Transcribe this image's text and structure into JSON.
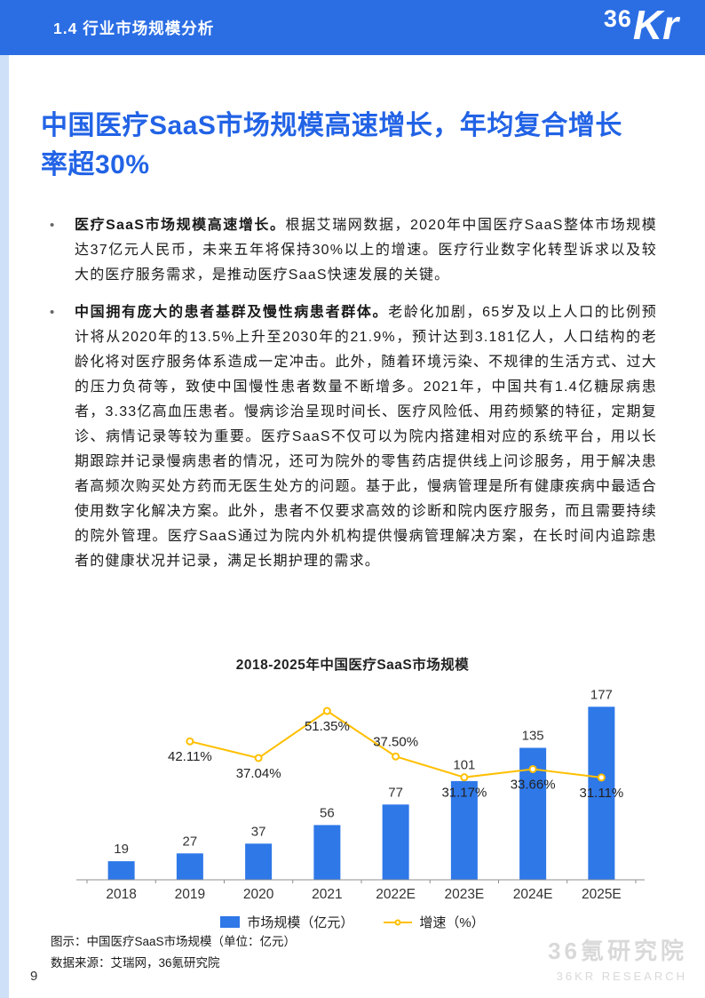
{
  "header": {
    "section": "1.4 行业市场规模分析",
    "logo_36": "36",
    "logo_kr": "Kr"
  },
  "title": {
    "text": "中国医疗SaaS市场规模高速增长，年均复合增长率超30%"
  },
  "bullets": [
    {
      "lead": "医疗SaaS市场规模高速增长。",
      "body": "根据艾瑞网数据，2020年中国医疗SaaS整体市场规模达37亿元人民币，未来五年将保持30%以上的增速。医疗行业数字化转型诉求以及较大的医疗服务需求，是推动医疗SaaS快速发展的关键。"
    },
    {
      "lead": "中国拥有庞大的患者基群及慢性病患者群体。",
      "body": "老龄化加剧，65岁及以上人口的比例预计将从2020年的13.5%上升至2030年的21.9%，预计达到3.181亿人，人口结构的老龄化将对医疗服务体系造成一定冲击。此外，随着环境污染、不规律的生活方式、过大的压力负荷等，致使中国慢性患者数量不断增多。2021年，中国共有1.4亿糖尿病患者，3.33亿高血压患者。慢病诊治呈现时间长、医疗风险低、用药频繁的特征，定期复诊、病情记录等较为重要。医疗SaaS不仅可以为院内搭建相对应的系统平台，用以长期跟踪并记录慢病患者的情况，还可为院外的零售药店提供线上问诊服务，用于解决患者高频次购买处方药而无医生处方的问题。基于此，慢病管理是所有健康疾病中最适合使用数字化解决方案。此外，患者不仅要求高效的诊断和院内医疗服务，而且需要持续的院外管理。医疗SaaS通过为院内外机构提供慢病管理解决方案，在长时间内追踪患者的健康状况并记录，满足长期护理的需求。"
    }
  ],
  "chart_data": {
    "type": "bar",
    "title": "2018-2025年中国医疗SaaS市场规模",
    "categories": [
      "2018",
      "2019",
      "2020",
      "2021",
      "2022E",
      "2023E",
      "2024E",
      "2025E"
    ],
    "series": [
      {
        "name": "市场规模（亿元）",
        "type": "bar",
        "values": [
          19,
          27,
          37,
          56,
          77,
          101,
          135,
          177
        ],
        "color": "#2E78E8"
      },
      {
        "name": "增速（%）",
        "type": "line",
        "x_start_index": 1,
        "values": [
          42.11,
          37.04,
          51.35,
          37.5,
          31.17,
          33.66,
          31.11
        ],
        "labels": [
          "42.11%",
          "37.04%",
          "51.35%",
          "37.50%",
          "31.17%",
          "33.66%",
          "31.11%"
        ],
        "label_positions": [
          "below",
          "below",
          "below",
          "above",
          "below",
          "below",
          "below"
        ],
        "color": "#FFBF00"
      }
    ],
    "xlabel": "",
    "ylabel": "",
    "ylim_bar": [
      0,
      200
    ],
    "ylim_pct": [
      0,
      60
    ],
    "grid": false,
    "legend_position": "bottom"
  },
  "footnotes": {
    "caption": "图示：中国医疗SaaS市场规模（单位：亿元）",
    "source": "数据来源：艾瑞网，36氪研究院"
  },
  "watermark": {
    "line1": "36氪研究院",
    "line2": "36KR RESEARCH"
  },
  "page_number": "9",
  "colors": {
    "header_bg": "#2B6EE4",
    "accent_blue": "#2263E6",
    "bar": "#2E78E8",
    "line": "#FFBF00",
    "strip": "#CDE0F8"
  }
}
